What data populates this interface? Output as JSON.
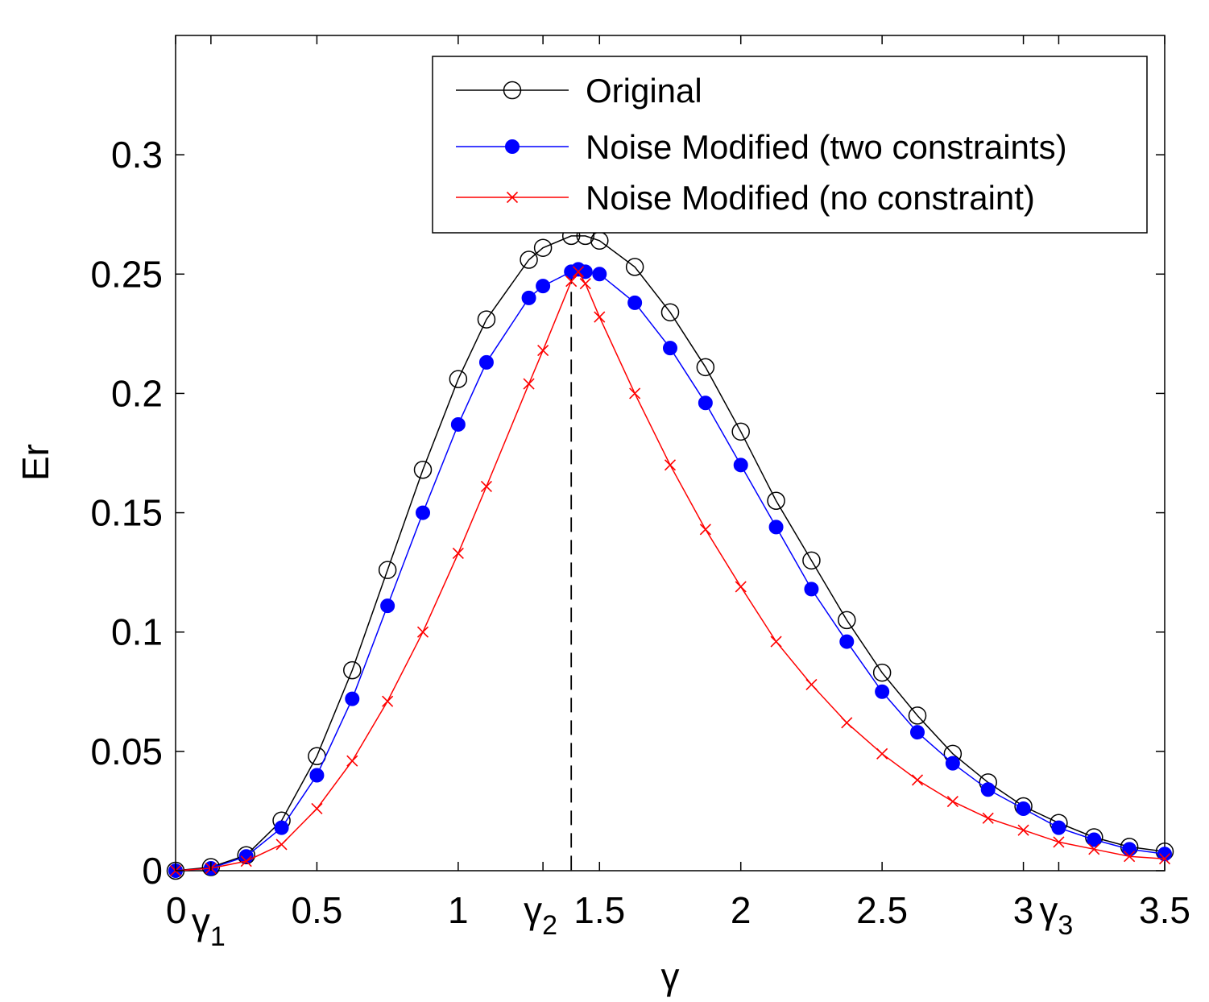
{
  "chart_data": {
    "type": "line",
    "title": "",
    "xlabel": "γ",
    "ylabel": "Er",
    "xlim": [
      0,
      3.5
    ],
    "ylim": [
      0,
      0.35
    ],
    "grid": false,
    "legend_position": "top-right",
    "xticks": [
      {
        "value": 0,
        "label": "0"
      },
      {
        "value": 0.5,
        "label": "0.5"
      },
      {
        "value": 1,
        "label": "1"
      },
      {
        "value": 1.5,
        "label": "1.5"
      },
      {
        "value": 2,
        "label": "2"
      },
      {
        "value": 2.5,
        "label": "2.5"
      },
      {
        "value": 3,
        "label": "3"
      },
      {
        "value": 3.5,
        "label": "3.5"
      }
    ],
    "yticks": [
      {
        "value": 0,
        "label": "0"
      },
      {
        "value": 0.05,
        "label": "0.05"
      },
      {
        "value": 0.1,
        "label": "0.1"
      },
      {
        "value": 0.15,
        "label": "0.15"
      },
      {
        "value": 0.2,
        "label": "0.2"
      },
      {
        "value": 0.25,
        "label": "0.25"
      },
      {
        "value": 0.3,
        "label": "0.3"
      }
    ],
    "special_ticks": [
      {
        "value": 0.125,
        "base": "γ",
        "sub": "1"
      },
      {
        "value": 1.3,
        "base": "γ",
        "sub": "2"
      },
      {
        "value": 3.125,
        "base": "γ",
        "sub": "3"
      }
    ],
    "vline": {
      "x": 1.4,
      "style": "dashed",
      "color": "#000000"
    },
    "series": [
      {
        "name": "Original",
        "color": "#000000",
        "marker": "circle-open",
        "x": [
          0,
          0.125,
          0.25,
          0.375,
          0.5,
          0.625,
          0.75,
          0.875,
          1.0,
          1.1,
          1.25,
          1.3,
          1.4,
          1.45,
          1.5,
          1.625,
          1.75,
          1.875,
          2.0,
          2.125,
          2.25,
          2.375,
          2.5,
          2.625,
          2.75,
          2.875,
          3.0,
          3.125,
          3.25,
          3.375,
          3.5
        ],
        "y": [
          0.0,
          0.0015,
          0.0065,
          0.021,
          0.048,
          0.084,
          0.126,
          0.168,
          0.206,
          0.231,
          0.256,
          0.261,
          0.266,
          0.266,
          0.264,
          0.253,
          0.234,
          0.211,
          0.184,
          0.155,
          0.13,
          0.105,
          0.083,
          0.065,
          0.049,
          0.037,
          0.027,
          0.02,
          0.014,
          0.01,
          0.008
        ]
      },
      {
        "name": "Noise Modified (two constraints)",
        "color": "#0000ff",
        "marker": "circle-filled",
        "x": [
          0,
          0.125,
          0.25,
          0.375,
          0.5,
          0.625,
          0.75,
          0.875,
          1.0,
          1.1,
          1.25,
          1.3,
          1.4,
          1.425,
          1.45,
          1.5,
          1.625,
          1.75,
          1.875,
          2.0,
          2.125,
          2.25,
          2.375,
          2.5,
          2.625,
          2.75,
          2.875,
          3.0,
          3.125,
          3.25,
          3.375,
          3.5
        ],
        "y": [
          0.0,
          0.001,
          0.006,
          0.018,
          0.04,
          0.072,
          0.111,
          0.15,
          0.187,
          0.213,
          0.24,
          0.245,
          0.251,
          0.252,
          0.251,
          0.25,
          0.238,
          0.219,
          0.196,
          0.17,
          0.144,
          0.118,
          0.096,
          0.075,
          0.058,
          0.045,
          0.034,
          0.026,
          0.018,
          0.013,
          0.009,
          0.007
        ]
      },
      {
        "name": "Noise Modified (no constraint)",
        "color": "#ff0000",
        "marker": "x",
        "x": [
          0,
          0.125,
          0.25,
          0.375,
          0.5,
          0.625,
          0.75,
          0.875,
          1.0,
          1.1,
          1.25,
          1.3,
          1.4,
          1.425,
          1.45,
          1.5,
          1.625,
          1.75,
          1.875,
          2.0,
          2.125,
          2.25,
          2.375,
          2.5,
          2.625,
          2.75,
          2.875,
          3.0,
          3.125,
          3.25,
          3.375,
          3.5
        ],
        "y": [
          0.0,
          0.001,
          0.004,
          0.011,
          0.026,
          0.046,
          0.071,
          0.1,
          0.133,
          0.161,
          0.204,
          0.218,
          0.247,
          0.251,
          0.246,
          0.232,
          0.2,
          0.17,
          0.143,
          0.119,
          0.096,
          0.078,
          0.062,
          0.049,
          0.038,
          0.029,
          0.022,
          0.017,
          0.012,
          0.009,
          0.006,
          0.005
        ]
      }
    ]
  }
}
